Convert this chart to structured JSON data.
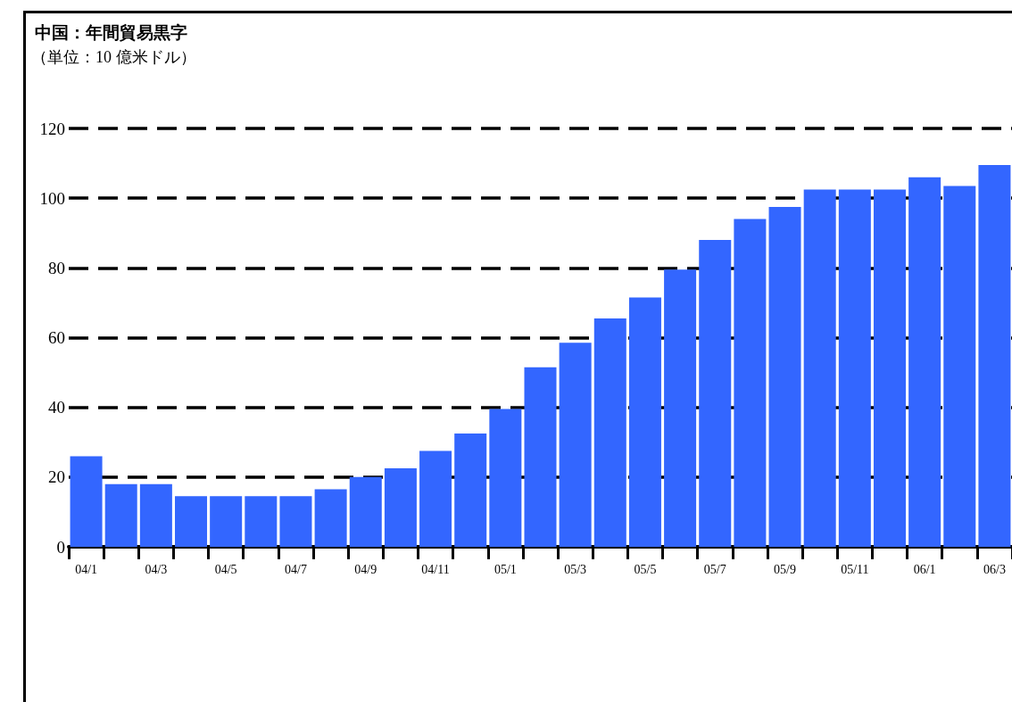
{
  "chart_data": {
    "type": "bar",
    "title": "中国：年間貿易黒字",
    "subtitle": "（単位：10 億米ドル）",
    "categories": [
      "04/1",
      null,
      "04/3",
      null,
      "04/5",
      null,
      "04/7",
      null,
      "04/9",
      null,
      "04/11",
      null,
      "05/1",
      null,
      "05/3",
      null,
      "05/5",
      null,
      "05/7",
      null,
      "05/9",
      null,
      "05/11",
      null,
      "06/1",
      null,
      "06/3"
    ],
    "values": [
      26,
      18,
      18,
      14.5,
      14.5,
      14.5,
      14.5,
      16.5,
      20,
      22.5,
      27.5,
      32.5,
      39.5,
      51.5,
      58.5,
      65.5,
      71.5,
      79.5,
      88,
      94,
      97.5,
      102.5,
      102.5,
      102.5,
      106,
      103.5,
      109.5
    ],
    "color": "#3366ff",
    "ylim": [
      0,
      120
    ],
    "yticks": [
      0,
      20,
      40,
      60,
      80,
      100,
      120
    ],
    "grid": "y",
    "line_style": "dashed"
  }
}
